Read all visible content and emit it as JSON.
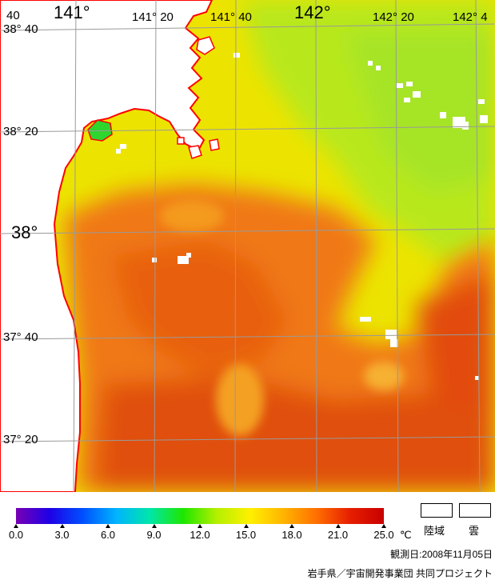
{
  "map": {
    "lon_top_labels": [
      {
        "text": "141°",
        "size": "big"
      },
      {
        "text": "141° 20",
        "size": "sm"
      },
      {
        "text": "141° 40",
        "size": "sm"
      },
      {
        "text": "142°",
        "size": "big"
      },
      {
        "text": "142° 20",
        "size": "sm"
      },
      {
        "text": "142° 4",
        "size": "sm"
      }
    ],
    "corner_label": "40",
    "lat_labels": [
      {
        "text": "38° 40",
        "size": "sm"
      },
      {
        "text": "38° 20",
        "size": "sm"
      },
      {
        "text": "38°",
        "size": "big"
      },
      {
        "text": "37° 40",
        "size": "sm"
      },
      {
        "text": "37° 20",
        "size": "sm"
      }
    ],
    "coast_color": "#ff0000",
    "land_color": "#ffffff",
    "cloud_color": "#ffffff",
    "grid_color": "#9a9a9a"
  },
  "colorbar": {
    "ticks": [
      "0.0",
      "3.0",
      "6.0",
      "9.0",
      "12.0",
      "15.0",
      "18.0",
      "21.0",
      "25.0"
    ],
    "unit": "℃",
    "stops": [
      "#7800b4",
      "#1e00e6",
      "#0050ff",
      "#00b4ff",
      "#00e6aa",
      "#1ee600",
      "#b4f000",
      "#fff000",
      "#ffb400",
      "#ff6e00",
      "#e61e00",
      "#c80000"
    ]
  },
  "legend": {
    "land_label": "陸域",
    "cloud_label": "雲"
  },
  "footer": {
    "date_label": "観測日:2008年11月05日",
    "credit": "岩手県／宇宙開発事業団  共同プロジェクト"
  }
}
